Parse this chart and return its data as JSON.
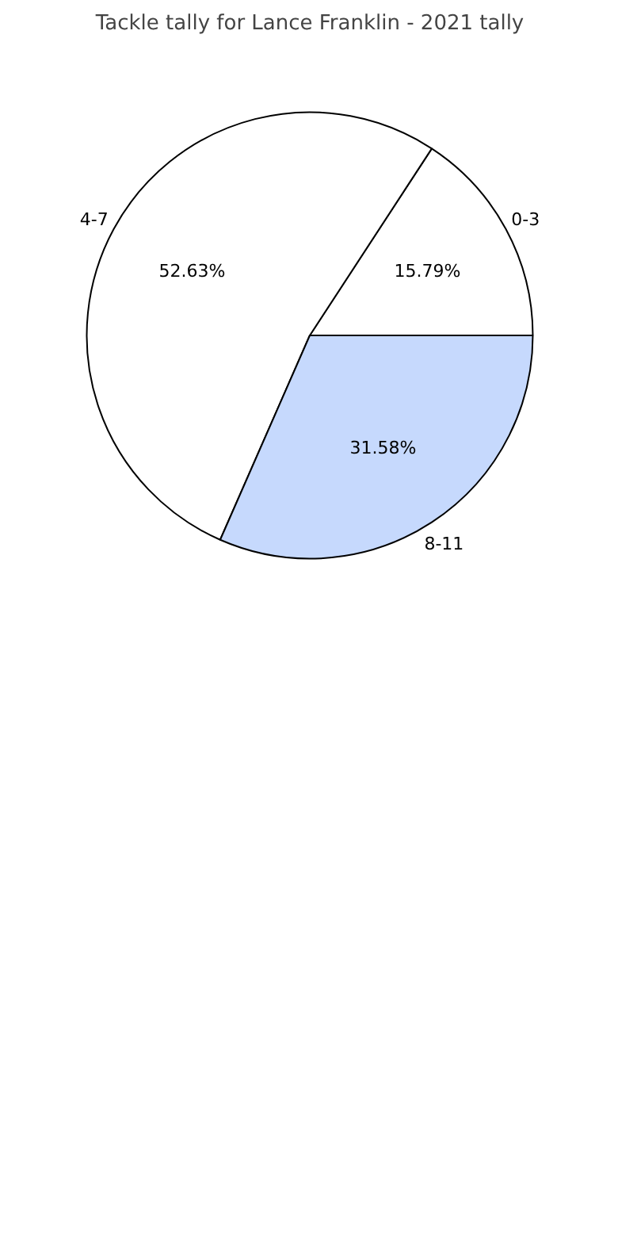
{
  "chart_data": {
    "type": "pie",
    "title": "Tackle tally for Lance Franklin - 2021 tally",
    "categories": [
      "0-3",
      "4-7",
      "8-11"
    ],
    "values": [
      15.79,
      52.63,
      31.58
    ],
    "value_labels": [
      "15.79%",
      "52.63%",
      "31.58%"
    ],
    "colors": [
      "#ffffff",
      "#ffffff",
      "#c6d9fd"
    ]
  }
}
